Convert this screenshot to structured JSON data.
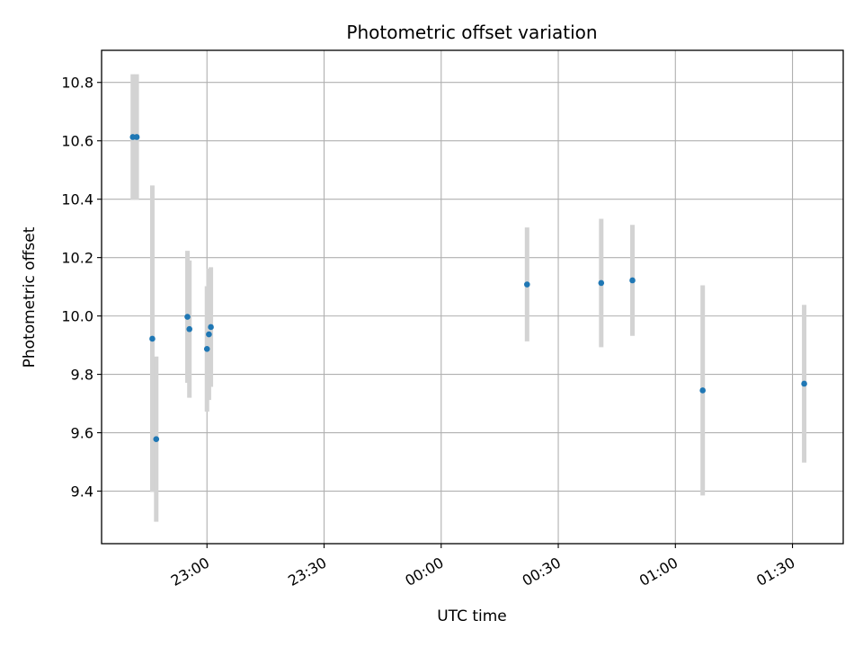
{
  "chart_data": {
    "type": "scatter",
    "title": "Photometric offset variation",
    "xlabel": "UTC time",
    "ylabel": "Photometric offset",
    "x_axis_kind": "time",
    "xlim": [
      "22:33",
      "01:43"
    ],
    "ylim": [
      9.22,
      10.91
    ],
    "x_ticks": [
      "23:00",
      "23:30",
      "00:00",
      "00:30",
      "01:00",
      "01:30"
    ],
    "y_ticks": [
      9.4,
      9.6,
      9.8,
      10.0,
      10.2,
      10.4,
      10.6,
      10.8
    ],
    "grid": true,
    "marker_color": "#1f77b4",
    "errorbar_color": "#d3d3d3",
    "series": [
      {
        "points": [
          {
            "x": "22:41",
            "y": 10.613,
            "err": 0.215
          },
          {
            "x": "22:42",
            "y": 10.613,
            "err": 0.215
          },
          {
            "x": "22:46",
            "y": 9.922,
            "err": 0.525
          },
          {
            "x": "22:47",
            "y": 9.578,
            "err": 0.283
          },
          {
            "x": "22:55",
            "y": 9.997,
            "err": 0.226
          },
          {
            "x": "22:55.5",
            "y": 9.955,
            "err": 0.235
          },
          {
            "x": "23:00",
            "y": 9.887,
            "err": 0.215
          },
          {
            "x": "23:00.5",
            "y": 9.937,
            "err": 0.225
          },
          {
            "x": "23:01",
            "y": 9.962,
            "err": 0.205
          },
          {
            "x": "00:22",
            "y": 10.108,
            "err": 0.195
          },
          {
            "x": "00:41",
            "y": 10.113,
            "err": 0.22
          },
          {
            "x": "00:49",
            "y": 10.122,
            "err": 0.19
          },
          {
            "x": "01:07",
            "y": 9.745,
            "err": 0.36
          },
          {
            "x": "01:33",
            "y": 9.768,
            "err": 0.27
          }
        ]
      }
    ]
  }
}
